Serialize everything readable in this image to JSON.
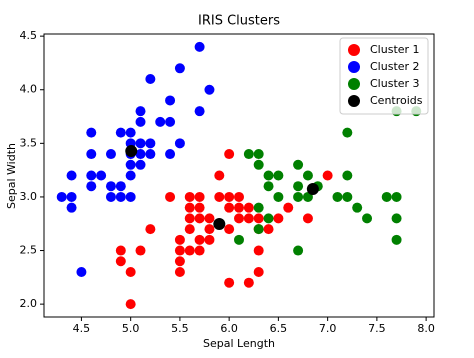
{
  "chart_data": {
    "type": "scatter",
    "title": "IRIS Clusters",
    "x_label": "Sepal Length",
    "y_label": "Sepal Width",
    "xlim": [
      4.12,
      8.08
    ],
    "ylim": [
      1.88,
      4.52
    ],
    "xticks": [
      4.5,
      {
        "value": 5,
        "label": "5.0"
      },
      5.5,
      {
        "value": 6,
        "label": "6.0"
      },
      6.5,
      {
        "value": 7,
        "label": "7.0"
      },
      7.5,
      {
        "value": 8,
        "label": "8.0"
      }
    ],
    "yticks": [
      {
        "value": 2,
        "label": "2.0"
      },
      2.5,
      {
        "value": 3,
        "label": "3.0"
      },
      3.5,
      {
        "value": 4,
        "label": "4.0"
      },
      4.5
    ],
    "legend_position": "upper right",
    "series": [
      {
        "name": "Cluster 1",
        "color": "#ff0000",
        "x": [
          5.0,
          5.0,
          4.9,
          4.9,
          5.1,
          5.2,
          5.5,
          5.5,
          5.5,
          5.5,
          5.6,
          5.6,
          5.6,
          5.6,
          5.6,
          5.7,
          5.7,
          5.7,
          5.7,
          5.7,
          5.8,
          5.8,
          5.8,
          5.4,
          5.9,
          5.9,
          6.0,
          6.0,
          6.0,
          6.0,
          6.0,
          6.1,
          6.1,
          6.1,
          6.2,
          6.2,
          6.2,
          6.3,
          6.3,
          6.3,
          6.3,
          6.4,
          6.5,
          6.6,
          6.8,
          7.0
        ],
        "y": [
          2.0,
          2.3,
          2.5,
          2.4,
          2.5,
          2.7,
          2.3,
          2.4,
          2.5,
          2.6,
          2.5,
          2.7,
          2.8,
          2.9,
          3.0,
          2.5,
          2.6,
          2.8,
          2.9,
          3.0,
          2.6,
          2.7,
          2.8,
          3.0,
          3.0,
          3.2,
          2.2,
          2.7,
          2.9,
          3.0,
          3.4,
          2.8,
          2.9,
          3.0,
          2.2,
          2.8,
          2.9,
          2.3,
          2.5,
          2.7,
          2.8,
          2.7,
          2.8,
          2.9,
          2.8,
          3.2
        ]
      },
      {
        "name": "Cluster 2",
        "color": "#0000ff",
        "x": [
          5.1,
          4.9,
          4.7,
          4.6,
          5.0,
          5.4,
          4.6,
          5.0,
          4.4,
          4.9,
          5.4,
          4.8,
          4.8,
          4.3,
          5.8,
          5.7,
          5.7,
          5.1,
          5.4,
          5.1,
          4.6,
          5.1,
          5.0,
          5.2,
          5.2,
          4.8,
          5.2,
          5.5,
          5.0,
          5.5,
          4.9,
          4.4,
          5.1,
          5.0,
          4.5,
          4.4,
          4.6,
          5.3,
          5.0
        ],
        "y": [
          3.5,
          3.0,
          3.2,
          3.1,
          3.6,
          3.9,
          3.4,
          3.4,
          2.9,
          3.1,
          3.7,
          3.4,
          3.0,
          3.0,
          4.0,
          4.4,
          3.8,
          3.8,
          3.4,
          3.7,
          3.6,
          3.3,
          3.0,
          3.5,
          3.4,
          3.1,
          4.1,
          4.2,
          3.2,
          3.5,
          3.6,
          3.0,
          3.4,
          3.5,
          2.3,
          3.2,
          3.2,
          3.7,
          3.3
        ]
      },
      {
        "name": "Cluster 3",
        "color": "#008000",
        "x": [
          6.1,
          6.2,
          6.3,
          6.3,
          6.3,
          6.3,
          6.4,
          6.4,
          6.4,
          6.5,
          6.5,
          6.7,
          6.7,
          6.7,
          6.7,
          6.8,
          6.8,
          6.9,
          7.1,
          7.2,
          7.2,
          7.2,
          7.3,
          7.4,
          7.6,
          7.7,
          7.7,
          7.7,
          7.7,
          7.9
        ],
        "y": [
          2.6,
          3.4,
          2.9,
          3.3,
          3.4,
          2.7,
          2.8,
          3.1,
          3.2,
          3.0,
          3.2,
          2.5,
          3.0,
          3.1,
          3.3,
          3.0,
          3.2,
          3.1,
          3.0,
          3.0,
          3.2,
          3.6,
          2.9,
          2.8,
          3.0,
          2.6,
          2.8,
          3.0,
          3.8,
          3.8
        ]
      },
      {
        "name": "Centroids",
        "color": "#000000",
        "x": [
          5.9,
          5.006,
          6.85
        ],
        "y": [
          2.748,
          3.428,
          3.074
        ]
      }
    ]
  }
}
